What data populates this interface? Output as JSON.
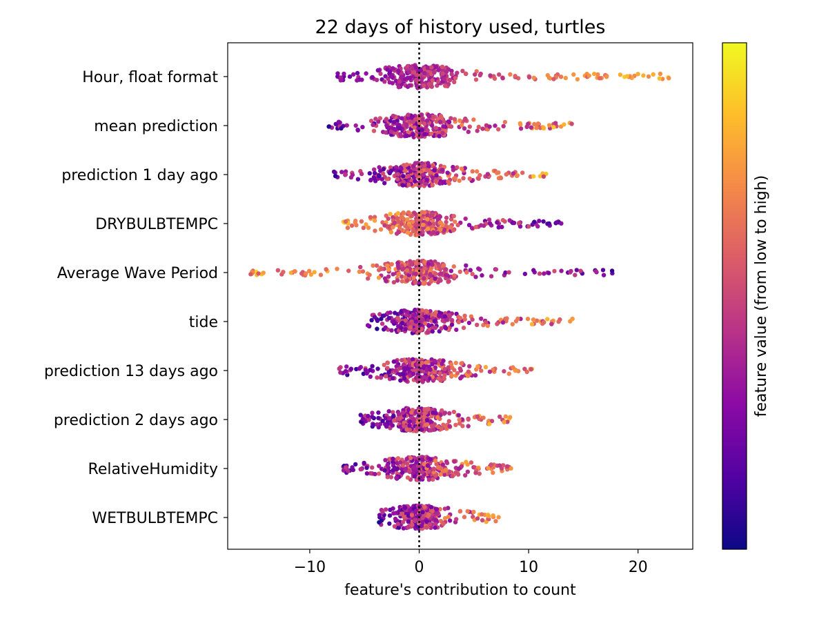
{
  "chart_data": {
    "type": "scatter",
    "subtype": "beeswarm",
    "title": "22 days of history used, turtles",
    "xlabel": "feature's contribution to count",
    "ylabel": "",
    "xlim": [
      -17.5,
      25
    ],
    "xticks": [
      -10,
      0,
      10,
      20
    ],
    "xtick_labels": [
      "−10",
      "0",
      "10",
      "20"
    ],
    "reference_line_x": 0,
    "grid": false,
    "features": [
      {
        "name": "Hour, float format",
        "x_min": -8,
        "x_max": 23.3
      },
      {
        "name": "mean prediction",
        "x_min": -8.3,
        "x_max": 14
      },
      {
        "name": "prediction 1 day ago",
        "x_min": -8,
        "x_max": 12
      },
      {
        "name": "DRYBULBTEMPC",
        "x_min": -7,
        "x_max": 13
      },
      {
        "name": "Average Wave Period",
        "x_min": -15.5,
        "x_max": 18.4
      },
      {
        "name": "tide",
        "x_min": -4.7,
        "x_max": 14.2
      },
      {
        "name": "prediction 13 days ago",
        "x_min": -7.5,
        "x_max": 10.4
      },
      {
        "name": "prediction 2 days ago",
        "x_min": -5.5,
        "x_max": 8.5
      },
      {
        "name": "RelativeHumidity",
        "x_min": -7,
        "x_max": 8.4
      },
      {
        "name": "WETBULBTEMPC",
        "x_min": -3.7,
        "x_max": 7.5
      }
    ],
    "colorbar": {
      "label": "feature value (from low to high)",
      "colormap": "plasma",
      "colors": [
        "#0d0887",
        "#5302a3",
        "#8b0aa5",
        "#b83289",
        "#db5c68",
        "#f48849",
        "#febd2a",
        "#f0f921"
      ]
    }
  }
}
